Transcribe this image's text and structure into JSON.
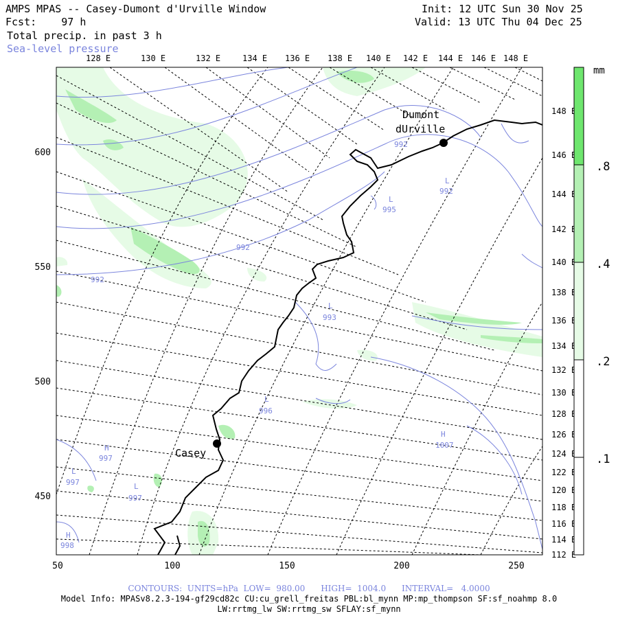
{
  "header": {
    "title": "AMPS MPAS -- Casey-Dumont d'Urville Window",
    "forecast": "Fcst:    97 h",
    "field": "Total precip. in past 3 h",
    "overlay": "Sea-level pressure",
    "init": "Init: 12 UTC Sun 30 Nov 25",
    "valid": "Valid: 13 UTC Thu 04 Dec 25"
  },
  "top_lon_labels": [
    "128 E",
    "130 E",
    "132 E",
    "134 E",
    "136 E",
    "138 E",
    "140 E",
    "142 E",
    "144 E",
    "146 E",
    "148 E"
  ],
  "right_lon_labels": [
    "148 E",
    "146 E",
    "144 E",
    "142 E",
    "140 E",
    "138 E",
    "136 E",
    "134 E",
    "132 E",
    "130 E",
    "128 E",
    "126 E",
    "124 E",
    "122 E",
    "120 E",
    "118 E",
    "116 E",
    "114 E",
    "112 E"
  ],
  "x_axis_ticks": [
    "50",
    "100",
    "150",
    "200",
    "250"
  ],
  "y_axis_ticks": [
    "600",
    "550",
    "500",
    "450"
  ],
  "colorbar": {
    "unit": "mm",
    "levels": [
      ".1",
      ".2",
      ".4",
      ".8"
    ],
    "colors": [
      "#ffffff",
      "#e6fbe6",
      "#b4f0b4",
      "#6ee66e"
    ]
  },
  "stations": [
    {
      "name": "Casey"
    },
    {
      "name_line1": "Dumont",
      "name_line2": "dUrville"
    }
  ],
  "pressure_labels": [
    {
      "letter": "",
      "value": "992"
    },
    {
      "letter": "",
      "value": "992"
    },
    {
      "letter": "",
      "value": "992"
    },
    {
      "letter": "L",
      "value": "995"
    },
    {
      "letter": "L",
      "value": "992"
    },
    {
      "letter": "L",
      "value": "993"
    },
    {
      "letter": "L",
      "value": "996"
    },
    {
      "letter": "H",
      "value": "1007"
    },
    {
      "letter": "H",
      "value": "997"
    },
    {
      "letter": "L",
      "value": "997"
    },
    {
      "letter": "L",
      "value": "997"
    },
    {
      "letter": "H",
      "value": "998"
    }
  ],
  "contour_info": "CONTOURS:  UNITS=hPa  LOW=  980.00      HIGH=  1004.0      INTERVAL=   4.0000",
  "model_info_1": "Model Info: MPASv8.2.3-194-gf29cd82c CU:cu_grell_freitas PBL:bl_mynn MP:mp_thompson SF:sf_noahmp 8.0",
  "model_info_2": "LW:rrtmg_lw SW:rrtmg_sw SFLAY:sf_mynn",
  "colors": {
    "contour": "#7a84dd",
    "coast": "#000000",
    "grid": "#000000",
    "precip_light": "#e6fbe6",
    "precip_mid": "#b4f0b4",
    "precip_heavy": "#6ee66e"
  }
}
